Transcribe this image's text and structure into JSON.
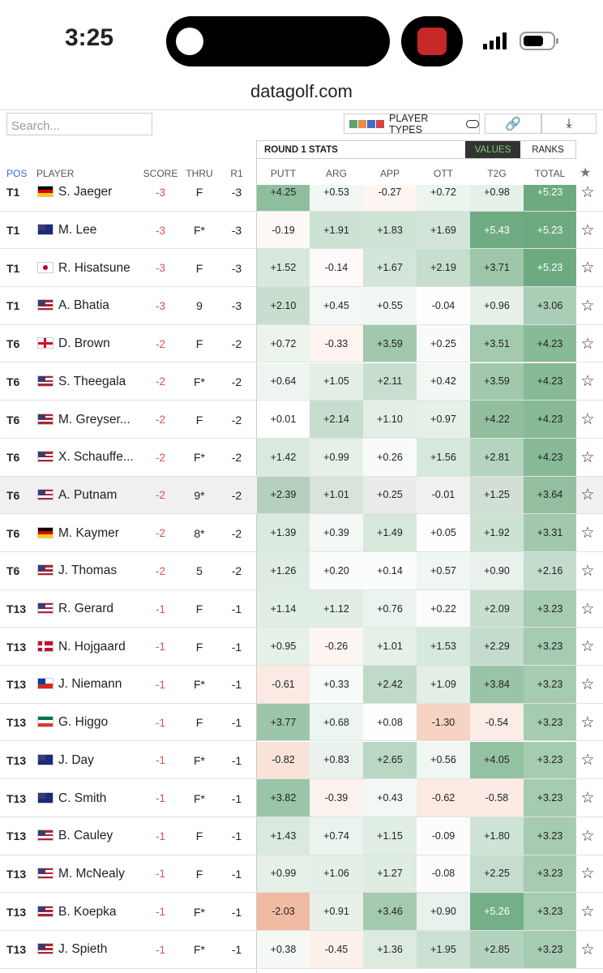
{
  "status_bar": {
    "time": "3:25"
  },
  "browser": {
    "url": "datagolf.com"
  },
  "toolbar": {
    "search_placeholder": "Search...",
    "player_types": "PLAYER TYPES"
  },
  "table": {
    "group_header": "ROUND 1 STATS",
    "toggle": [
      "VALUES",
      "RANKS"
    ],
    "columns": [
      "POS",
      "PLAYER",
      "SCORE",
      "THRU",
      "R1",
      "PUTT",
      "ARG",
      "APP",
      "OTT",
      "T2G",
      "TOTAL"
    ],
    "rows": [
      [
        "T1",
        "S. Jaeger",
        "-3",
        "F",
        "-3",
        "+4.25",
        "+0.53",
        "-0.27",
        "+0.72",
        "+0.98",
        "+5.23"
      ],
      [
        "T1",
        "M. Lee",
        "-3",
        "F*",
        "-3",
        "-0.19",
        "+1.91",
        "+1.83",
        "+1.69",
        "+5.43",
        "+5.23"
      ],
      [
        "T1",
        "R. Hisatsune",
        "-3",
        "F",
        "-3",
        "+1.52",
        "-0.14",
        "+1.67",
        "+2.19",
        "+3.71",
        "+5.23"
      ],
      [
        "T1",
        "A. Bhatia",
        "-3",
        "9",
        "-3",
        "+2.10",
        "+0.45",
        "+0.55",
        "-0.04",
        "+0.96",
        "+3.06"
      ],
      [
        "T6",
        "D. Brown",
        "-2",
        "F",
        "-2",
        "+0.72",
        "-0.33",
        "+3.59",
        "+0.25",
        "+3.51",
        "+4.23"
      ],
      [
        "T6",
        "S. Theegala",
        "-2",
        "F*",
        "-2",
        "+0.64",
        "+1.05",
        "+2.11",
        "+0.42",
        "+3.59",
        "+4.23"
      ],
      [
        "T6",
        "M. Greyser...",
        "-2",
        "F",
        "-2",
        "+0.01",
        "+2.14",
        "+1.10",
        "+0.97",
        "+4.22",
        "+4.23"
      ],
      [
        "T6",
        "X. Schauffe...",
        "-2",
        "F*",
        "-2",
        "+1.42",
        "+0.99",
        "+0.26",
        "+1.56",
        "+2.81",
        "+4.23"
      ],
      [
        "T6",
        "A. Putnam",
        "-2",
        "9*",
        "-2",
        "+2.39",
        "+1.01",
        "+0.25",
        "-0.01",
        "+1.25",
        "+3.64"
      ],
      [
        "T6",
        "M. Kaymer",
        "-2",
        "8*",
        "-2",
        "+1.39",
        "+0.39",
        "+1.49",
        "+0.05",
        "+1.92",
        "+3.31"
      ],
      [
        "T6",
        "J. Thomas",
        "-2",
        "5",
        "-2",
        "+1.26",
        "+0.20",
        "+0.14",
        "+0.57",
        "+0.90",
        "+2.16"
      ],
      [
        "T13",
        "R. Gerard",
        "-1",
        "F",
        "-1",
        "+1.14",
        "+1.12",
        "+0.76",
        "+0.22",
        "+2.09",
        "+3.23"
      ],
      [
        "T13",
        "N. Hojgaard",
        "-1",
        "F",
        "-1",
        "+0.95",
        "-0.26",
        "+1.01",
        "+1.53",
        "+2.29",
        "+3.23"
      ],
      [
        "T13",
        "J. Niemann",
        "-1",
        "F*",
        "-1",
        "-0.61",
        "+0.33",
        "+2.42",
        "+1.09",
        "+3.84",
        "+3.23"
      ],
      [
        "T13",
        "G. Higgo",
        "-1",
        "F",
        "-1",
        "+3.77",
        "+0.68",
        "+0.08",
        "-1.30",
        "-0.54",
        "+3.23"
      ],
      [
        "T13",
        "J. Day",
        "-1",
        "F*",
        "-1",
        "-0.82",
        "+0.83",
        "+2.65",
        "+0.56",
        "+4.05",
        "+3.23"
      ],
      [
        "T13",
        "C. Smith",
        "-1",
        "F*",
        "-1",
        "+3.82",
        "-0.39",
        "+0.43",
        "-0.62",
        "-0.58",
        "+3.23"
      ],
      [
        "T13",
        "B. Cauley",
        "-1",
        "F",
        "-1",
        "+1.43",
        "+0.74",
        "+1.15",
        "-0.09",
        "+1.80",
        "+3.23"
      ],
      [
        "T13",
        "M. McNealy",
        "-1",
        "F",
        "-1",
        "+0.99",
        "+1.06",
        "+1.27",
        "-0.08",
        "+2.25",
        "+3.23"
      ],
      [
        "T13",
        "B. Koepka",
        "-1",
        "F*",
        "-1",
        "-2.03",
        "+0.91",
        "+3.46",
        "+0.90",
        "+5.26",
        "+3.23"
      ],
      [
        "T13",
        "J. Spieth",
        "-1",
        "F*",
        "-1",
        "+0.38",
        "-0.45",
        "+1.36",
        "+1.95",
        "+2.85",
        "+3.23"
      ]
    ]
  }
}
